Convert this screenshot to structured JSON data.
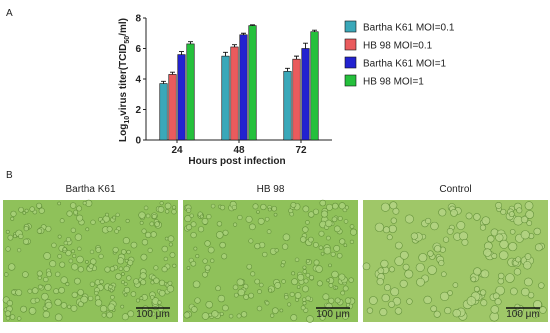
{
  "chart_data": {
    "type": "bar",
    "panel_label": "A",
    "y_label": [
      "Log",
      "10",
      "virus titer(TCID",
      "50",
      "/ml)"
    ],
    "x_label": "Hours post infection",
    "categories": [
      "24",
      "48",
      "72"
    ],
    "series": [
      {
        "name": "Bartha K61 MOI=0.1",
        "color": "#3aa8b9",
        "values": [
          3.7,
          5.5,
          4.5
        ],
        "errors": [
          0.15,
          0.25,
          0.2
        ]
      },
      {
        "name": "HB 98 MOI=0.1",
        "color": "#ea5b5d",
        "values": [
          4.3,
          6.1,
          5.3
        ],
        "errors": [
          0.15,
          0.15,
          0.2
        ]
      },
      {
        "name": "Bartha K61 MOI=1",
        "color": "#2222d0",
        "values": [
          5.6,
          6.9,
          6.0
        ],
        "errors": [
          0.2,
          0.1,
          0.35
        ]
      },
      {
        "name": "HB 98 MOI=1",
        "color": "#25c03c",
        "values": [
          6.3,
          7.5,
          7.1
        ],
        "errors": [
          0.15,
          0.05,
          0.1
        ]
      }
    ],
    "ylim": [
      0,
      8
    ],
    "yticks": [
      0,
      2,
      4,
      6,
      8
    ],
    "legend": "right"
  },
  "panel_b": {
    "label": "B",
    "images": [
      {
        "title": "Bartha K61",
        "scale_bar": "100 μm"
      },
      {
        "title": "HB 98",
        "scale_bar": "100 μm"
      },
      {
        "title": "Control",
        "scale_bar": "100 μm"
      }
    ]
  }
}
